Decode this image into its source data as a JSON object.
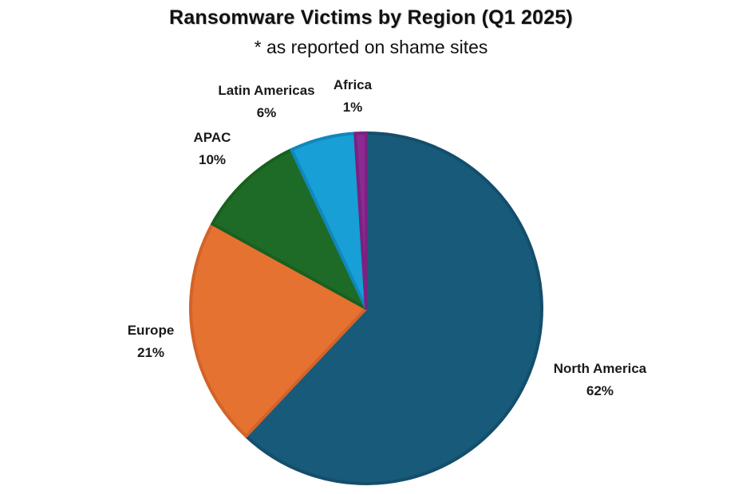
{
  "chart_data": {
    "type": "pie",
    "title": "Ransomware Victims by Region (Q1 2025)",
    "subtitle": "* as reported on shame sites",
    "start": "12 o'clock",
    "direction": "clockwise",
    "slices": [
      {
        "label": "North America",
        "value": 62,
        "display": "62%",
        "color": "#175a7a",
        "edge": "#144e6b"
      },
      {
        "label": "Europe",
        "value": 21,
        "display": "21%",
        "color": "#e67232",
        "edge": "#d2632a"
      },
      {
        "label": "APAC",
        "value": 10,
        "display": "10%",
        "color": "#1e6b27",
        "edge": "#19601f"
      },
      {
        "label": "Latin Americas",
        "value": 6,
        "display": "6%",
        "color": "#179fd6",
        "edge": "#1188bb"
      },
      {
        "label": "Africa",
        "value": 1,
        "display": "1%",
        "color": "#8c2a93",
        "edge": "#7a2280"
      }
    ]
  }
}
